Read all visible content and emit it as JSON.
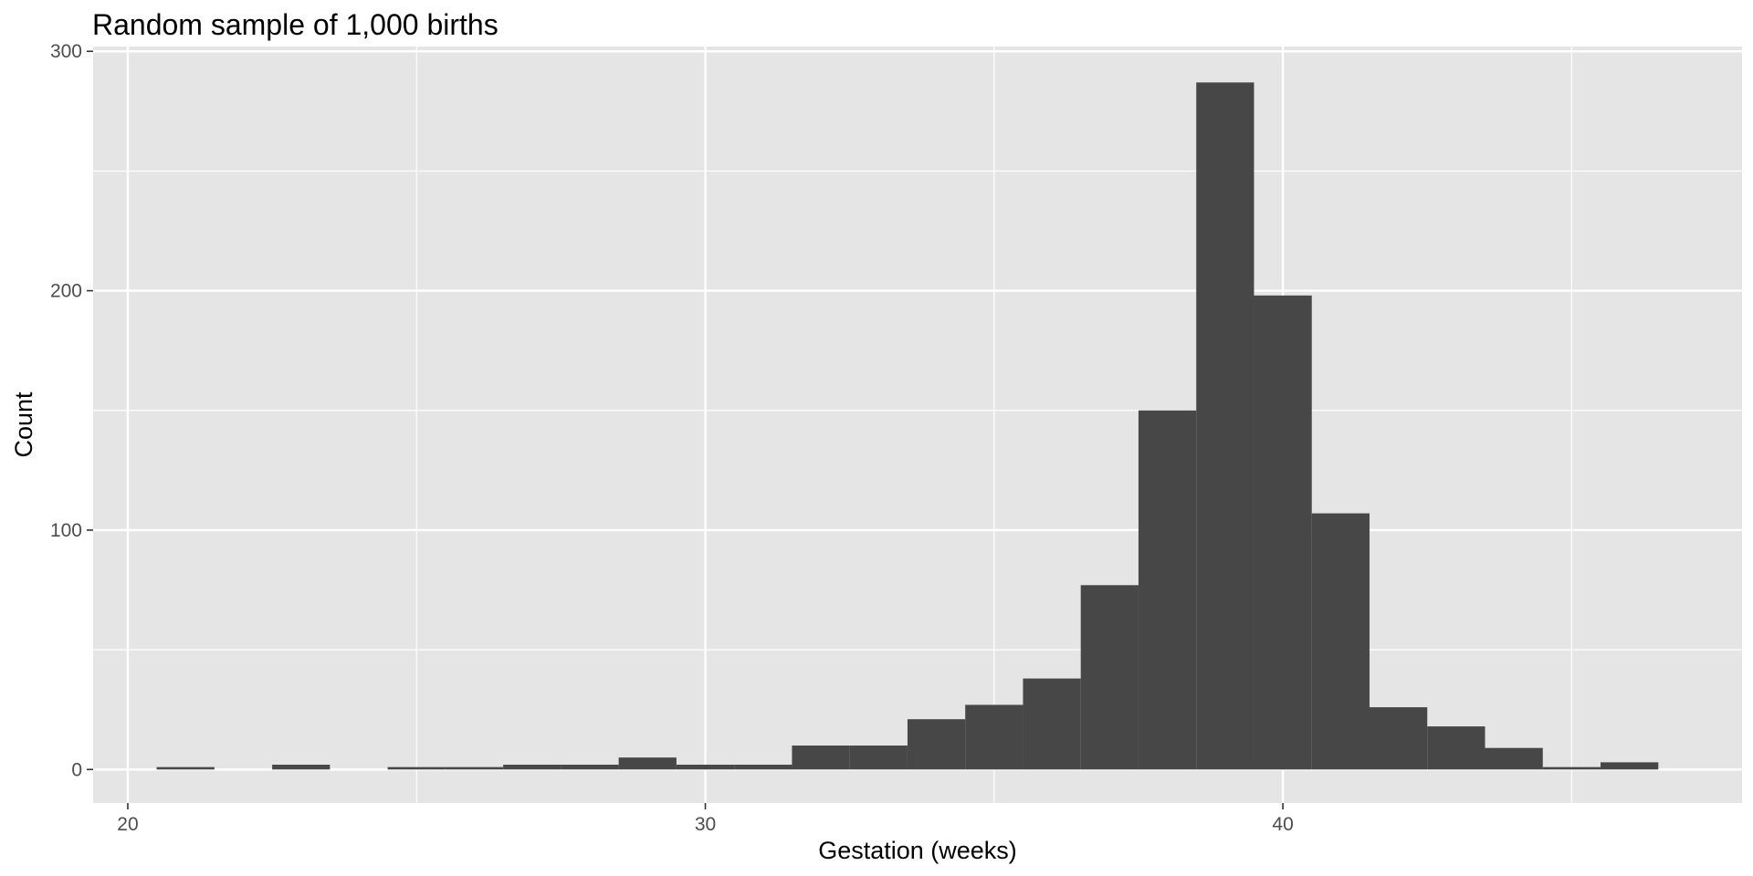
{
  "chart_data": {
    "type": "bar",
    "title": "Random sample of 1,000 births",
    "xlabel": "Gestation (weeks)",
    "ylabel": "Count",
    "xlim": [
      19.4,
      47.95
    ],
    "ylim": [
      -14,
      302
    ],
    "x_ticks": [
      20,
      30,
      40
    ],
    "y_ticks": [
      0,
      100,
      200,
      300
    ],
    "x_minor_gridlines": [
      25,
      35,
      45
    ],
    "y_minor_gridlines": [
      50,
      150,
      250
    ],
    "grid": true,
    "bin_width": 1,
    "bins": [
      {
        "x": 21,
        "count": 1
      },
      {
        "x": 22,
        "count": 0
      },
      {
        "x": 23,
        "count": 2
      },
      {
        "x": 24,
        "count": 0
      },
      {
        "x": 25,
        "count": 1
      },
      {
        "x": 26,
        "count": 1
      },
      {
        "x": 27,
        "count": 2
      },
      {
        "x": 28,
        "count": 2
      },
      {
        "x": 29,
        "count": 5
      },
      {
        "x": 30,
        "count": 2
      },
      {
        "x": 31,
        "count": 2
      },
      {
        "x": 32,
        "count": 10
      },
      {
        "x": 33,
        "count": 10
      },
      {
        "x": 34,
        "count": 21
      },
      {
        "x": 35,
        "count": 27
      },
      {
        "x": 36,
        "count": 38
      },
      {
        "x": 37,
        "count": 77
      },
      {
        "x": 38,
        "count": 150
      },
      {
        "x": 39,
        "count": 287
      },
      {
        "x": 40,
        "count": 198
      },
      {
        "x": 41,
        "count": 107
      },
      {
        "x": 42,
        "count": 26
      },
      {
        "x": 43,
        "count": 18
      },
      {
        "x": 44,
        "count": 9
      },
      {
        "x": 45,
        "count": 1
      },
      {
        "x": 46,
        "count": 3
      }
    ],
    "colors": {
      "panel": "#e5e5e5",
      "grid": "#ffffff",
      "bar": "#474747",
      "tick_text": "#4d4d4d",
      "tick_mark": "#333333"
    }
  }
}
